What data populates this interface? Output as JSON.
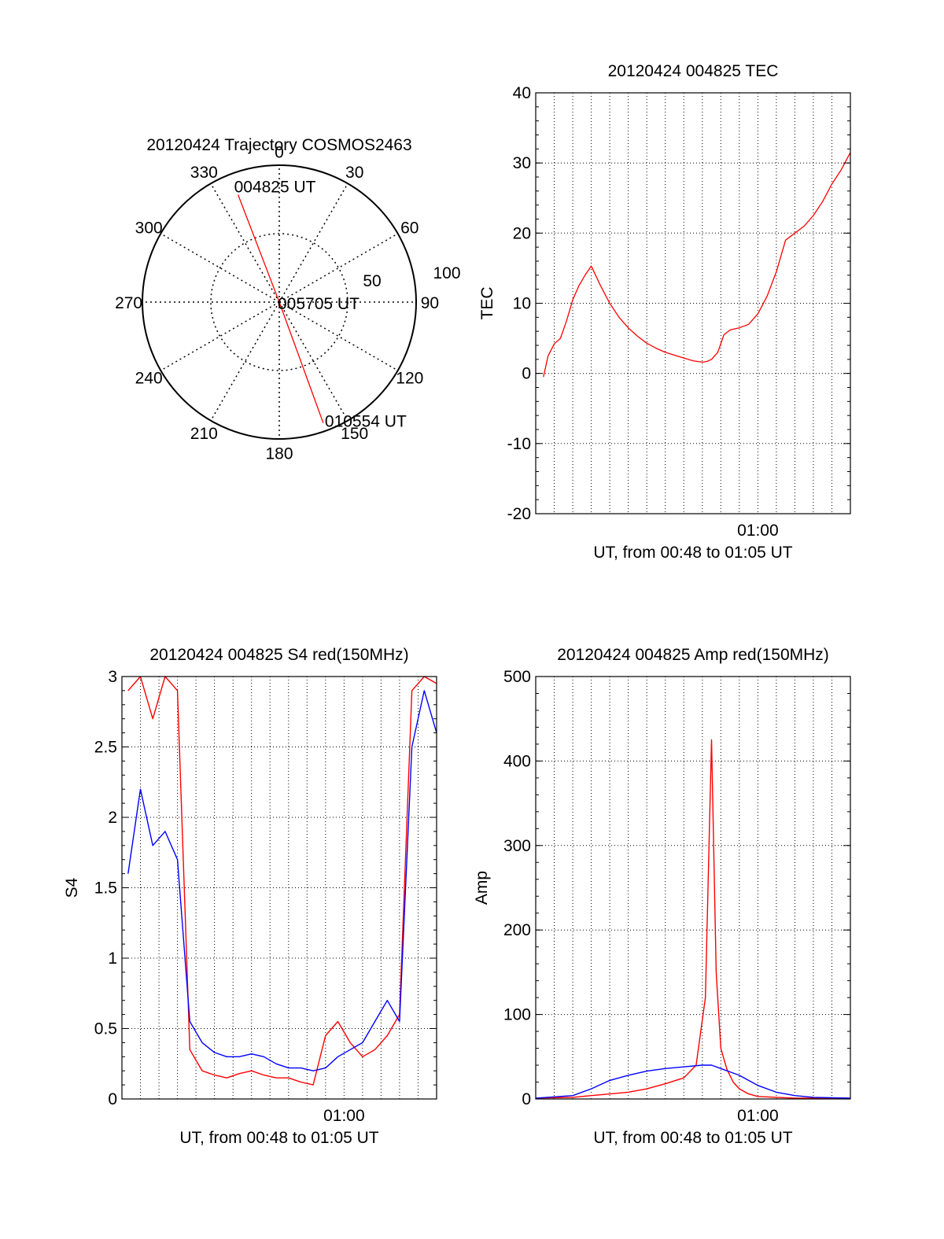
{
  "chart_data": [
    {
      "type": "polar",
      "title": "20120424 Trajectory COSMOS2463",
      "azimuth_labels": [
        "0",
        "30",
        "60",
        "90",
        "120",
        "150",
        "180",
        "210",
        "240",
        "270",
        "300",
        "330"
      ],
      "ring_labels": [
        "50",
        "100"
      ],
      "rlim": [
        0,
        100
      ],
      "annotations": {
        "start": "004825 UT",
        "mid": "005705 UT",
        "end": "010554 UT"
      },
      "trajectory": {
        "color": "#ff0000",
        "points": [
          {
            "az": 339,
            "r": 84
          },
          {
            "az": 339,
            "r": 60
          },
          {
            "az": 339,
            "r": 30
          },
          {
            "az": 0,
            "r": 0
          },
          {
            "az": 160,
            "r": 30
          },
          {
            "az": 160,
            "r": 60
          },
          {
            "az": 160,
            "r": 94
          }
        ]
      }
    },
    {
      "type": "line",
      "title": "20120424 004825 TEC",
      "xlabel": "UT, from 00:48 to 01:05 UT",
      "ylabel": "TEC",
      "xlim": [
        "00:48",
        "01:05"
      ],
      "xticks": [
        "01:00"
      ],
      "ylim": [
        -20,
        40
      ],
      "yticks": [
        "-20",
        "-10",
        "0",
        "10",
        "20",
        "30",
        "40"
      ],
      "grid": true,
      "series": [
        {
          "color": "#ff0000",
          "x": [
            "00:48:25",
            "00:48:40",
            "00:49:00",
            "00:49:20",
            "00:49:40",
            "00:50:00",
            "00:50:20",
            "00:50:40",
            "00:51:00",
            "00:51:30",
            "00:52:00",
            "00:52:30",
            "00:53:00",
            "00:53:30",
            "00:54:00",
            "00:54:30",
            "00:55:00",
            "00:55:30",
            "00:56:00",
            "00:56:30",
            "00:57:00",
            "00:57:15",
            "00:57:30",
            "00:57:50",
            "00:58:10",
            "00:58:30",
            "00:59:00",
            "00:59:30",
            "01:00:00",
            "01:00:30",
            "01:01:00",
            "01:01:30",
            "01:02:00",
            "01:02:30",
            "01:03:00",
            "01:03:30",
            "01:04:00",
            "01:04:30",
            "01:05:00"
          ],
          "y": [
            -0.5,
            2.5,
            4.2,
            5.0,
            7.5,
            10.5,
            12.5,
            14.0,
            15.3,
            12.5,
            10.0,
            8.0,
            6.5,
            5.3,
            4.3,
            3.6,
            3.0,
            2.6,
            2.2,
            1.8,
            1.6,
            1.7,
            2.0,
            3.0,
            5.5,
            6.2,
            6.5,
            7.0,
            8.5,
            11.0,
            14.5,
            19.0,
            20.0,
            21.0,
            22.5,
            24.5,
            27.0,
            29.0,
            31.5
          ]
        }
      ]
    },
    {
      "type": "line",
      "title": "20120424 004825 S4 red(150MHz)",
      "xlabel": "UT, from 00:48 to 01:05 UT",
      "ylabel": "S4",
      "xlim": [
        "00:48",
        "01:05"
      ],
      "xticks": [
        "01:00"
      ],
      "ylim": [
        0,
        3
      ],
      "yticks": [
        "0",
        "0.5",
        "1",
        "1.5",
        "2",
        "2.5",
        "3"
      ],
      "grid": true,
      "series": [
        {
          "color": "#ff0000",
          "x": [
            "00:48:20",
            "00:49:00",
            "00:49:40",
            "00:50:20",
            "00:51:00",
            "00:51:40",
            "00:52:20",
            "00:53:00",
            "00:53:40",
            "00:54:20",
            "00:55:00",
            "00:55:40",
            "00:56:20",
            "00:57:00",
            "00:57:40",
            "00:58:20",
            "00:59:00",
            "00:59:40",
            "01:00:20",
            "01:01:00",
            "01:01:40",
            "01:02:20",
            "01:03:00",
            "01:03:40",
            "01:04:20",
            "01:05:00"
          ],
          "y": [
            2.9,
            3.0,
            2.7,
            3.0,
            2.9,
            0.35,
            0.2,
            0.17,
            0.15,
            0.18,
            0.2,
            0.17,
            0.15,
            0.15,
            0.12,
            0.1,
            0.45,
            0.55,
            0.4,
            0.3,
            0.35,
            0.45,
            0.6,
            2.9,
            3.0,
            2.95
          ]
        },
        {
          "color": "#0000ff",
          "x": [
            "00:48:20",
            "00:49:00",
            "00:49:40",
            "00:50:20",
            "00:51:00",
            "00:51:40",
            "00:52:20",
            "00:53:00",
            "00:53:40",
            "00:54:20",
            "00:55:00",
            "00:55:40",
            "00:56:20",
            "00:57:00",
            "00:57:40",
            "00:58:20",
            "00:59:00",
            "00:59:40",
            "01:00:20",
            "01:01:00",
            "01:01:40",
            "01:02:20",
            "01:03:00",
            "01:03:40",
            "01:04:20",
            "01:05:00"
          ],
          "y": [
            1.6,
            2.2,
            1.8,
            1.9,
            1.7,
            0.55,
            0.4,
            0.33,
            0.3,
            0.3,
            0.32,
            0.3,
            0.25,
            0.22,
            0.22,
            0.2,
            0.22,
            0.3,
            0.35,
            0.4,
            0.55,
            0.7,
            0.55,
            2.5,
            2.9,
            2.6
          ]
        }
      ]
    },
    {
      "type": "line",
      "title": "20120424 004825 Amp red(150MHz)",
      "xlabel": "UT, from 00:48 to 01:05 UT",
      "ylabel": "Amp",
      "xlim": [
        "00:48",
        "01:05"
      ],
      "xticks": [
        "01:00"
      ],
      "ylim": [
        0,
        500
      ],
      "yticks": [
        "0",
        "100",
        "200",
        "300",
        "400",
        "500"
      ],
      "grid": true,
      "series": [
        {
          "color": "#ff0000",
          "x": [
            "00:48:00",
            "00:50:00",
            "00:51:00",
            "00:52:00",
            "00:53:00",
            "00:54:00",
            "00:55:00",
            "00:56:00",
            "00:56:40",
            "00:57:10",
            "00:57:30",
            "00:57:45",
            "00:58:00",
            "00:58:20",
            "00:58:40",
            "00:59:00",
            "00:59:30",
            "01:00:00",
            "01:01:00",
            "01:02:00",
            "01:03:00",
            "01:05:00"
          ],
          "y": [
            1,
            2,
            4,
            6,
            8,
            12,
            18,
            25,
            40,
            120,
            425,
            150,
            60,
            35,
            20,
            12,
            6,
            3,
            2,
            1,
            1,
            1
          ]
        },
        {
          "color": "#0000ff",
          "x": [
            "00:48:00",
            "00:50:00",
            "00:51:00",
            "00:52:00",
            "00:53:00",
            "00:54:00",
            "00:55:00",
            "00:56:00",
            "00:57:00",
            "00:57:30",
            "00:58:00",
            "00:58:30",
            "00:59:00",
            "00:59:30",
            "01:00:00",
            "01:01:00",
            "01:02:00",
            "01:03:00",
            "01:05:00"
          ],
          "y": [
            1,
            4,
            12,
            22,
            28,
            33,
            36,
            38,
            40,
            40,
            36,
            32,
            28,
            22,
            16,
            8,
            4,
            2,
            1
          ]
        }
      ]
    }
  ]
}
